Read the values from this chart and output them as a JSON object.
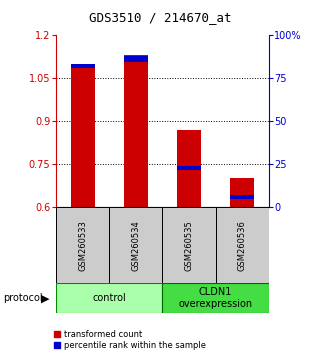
{
  "title": "GDS3510 / 214670_at",
  "categories": [
    "GSM260533",
    "GSM260534",
    "GSM260535",
    "GSM260536"
  ],
  "y_min": 0.6,
  "y_max": 1.2,
  "y_ticks_left": [
    0.6,
    0.75,
    0.9,
    1.05,
    1.2
  ],
  "y_ticks_right": [
    0,
    25,
    50,
    75,
    100
  ],
  "red_bar_tops": [
    1.1,
    1.13,
    0.87,
    0.7
  ],
  "blue_bar_bottoms": [
    1.085,
    1.108,
    0.728,
    0.628
  ],
  "blue_bar_tops": [
    1.1,
    1.128,
    0.742,
    0.643
  ],
  "bar_width": 0.45,
  "group_control_label": "control",
  "group_cldn1_label": "CLDN1\noverexpression",
  "group_control_color": "#aaffaa",
  "group_cldn1_color": "#44dd44",
  "protocol_label": "protocol",
  "legend_red_label": "transformed count",
  "legend_blue_label": "percentile rank within the sample",
  "left_axis_color": "#cc0000",
  "right_axis_color": "#0000cc",
  "bar_red_color": "#cc0000",
  "bar_blue_color": "#0000cc",
  "sample_box_color": "#cccccc",
  "title_fontsize": 9,
  "tick_fontsize": 7,
  "label_fontsize": 7,
  "sample_fontsize": 6,
  "group_fontsize": 7,
  "legend_fontsize": 6
}
